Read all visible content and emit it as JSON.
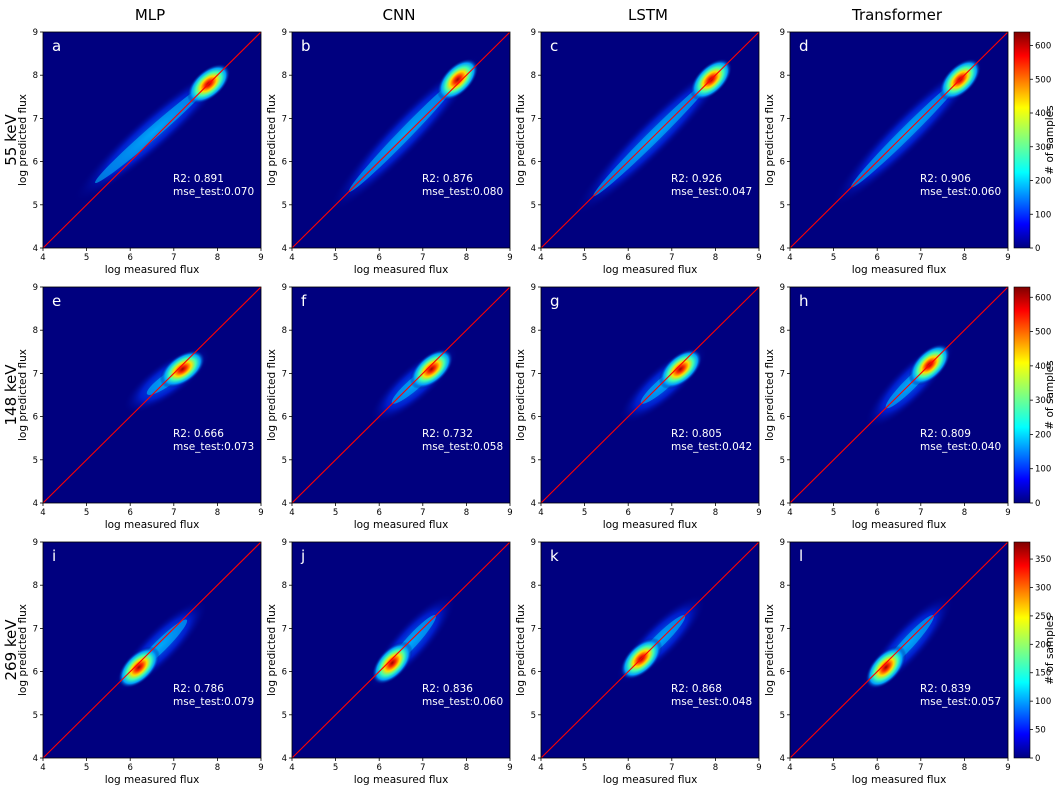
{
  "figure": {
    "column_titles": [
      "MLP",
      "CNN",
      "LSTM",
      "Transformer"
    ],
    "row_titles": [
      "55 keV",
      "148 keV",
      "269 keV"
    ],
    "colorbar_label": "# of samples",
    "colorbar_ticks": [
      [
        "0",
        "100",
        "200",
        "300",
        "400",
        "500",
        "600"
      ],
      [
        "0",
        "100",
        "200",
        "300",
        "400",
        "500",
        "600"
      ],
      [
        "0",
        "50",
        "100",
        "150",
        "200",
        "250",
        "300",
        "350"
      ]
    ],
    "colorbar_max": [
      640,
      630,
      380
    ],
    "colors": {
      "background": "#00007f",
      "identity_line": "#ff0000"
    }
  },
  "chart_data": [
    {
      "type": "heatmap",
      "panel": "a",
      "model": "MLP",
      "energy": "55 keV",
      "xlabel": "log measured flux",
      "ylabel": "log predicted flux",
      "xlim": [
        4,
        9
      ],
      "ylim": [
        4,
        9
      ],
      "ticks": [
        4,
        5,
        6,
        7,
        8,
        9
      ],
      "r2_label": "R2: 0.891",
      "mse_label": "mse_test:0.070",
      "density_center": [
        7.8,
        7.8
      ],
      "density_tail": [
        5.3,
        5.6
      ]
    },
    {
      "type": "heatmap",
      "panel": "b",
      "model": "CNN",
      "energy": "55 keV",
      "xlabel": "log measured flux",
      "ylabel": "log predicted flux",
      "xlim": [
        4,
        9
      ],
      "ylim": [
        4,
        9
      ],
      "ticks": [
        4,
        5,
        6,
        7,
        8,
        9
      ],
      "r2_label": "R2: 0.876",
      "mse_label": "mse_test:0.080",
      "density_center": [
        7.8,
        7.9
      ],
      "density_tail": [
        5.4,
        5.4
      ]
    },
    {
      "type": "heatmap",
      "panel": "c",
      "model": "LSTM",
      "energy": "55 keV",
      "xlabel": "log measured flux",
      "ylabel": "log predicted flux",
      "xlim": [
        4,
        9
      ],
      "ylim": [
        4,
        9
      ],
      "ticks": [
        4,
        5,
        6,
        7,
        8,
        9
      ],
      "r2_label": "R2: 0.926",
      "mse_label": "mse_test:0.047",
      "density_center": [
        7.9,
        7.9
      ],
      "density_tail": [
        5.3,
        5.3
      ]
    },
    {
      "type": "heatmap",
      "panel": "d",
      "model": "Transformer",
      "energy": "55 keV",
      "xlabel": "log measured flux",
      "ylabel": "log predicted flux",
      "xlim": [
        4,
        9
      ],
      "ylim": [
        4,
        9
      ],
      "ticks": [
        4,
        5,
        6,
        7,
        8,
        9
      ],
      "r2_label": "R2: 0.906",
      "mse_label": "mse_test:0.060",
      "density_center": [
        7.9,
        7.9
      ],
      "density_tail": [
        5.5,
        5.5
      ]
    },
    {
      "type": "heatmap",
      "panel": "e",
      "model": "MLP",
      "energy": "148 keV",
      "xlabel": "log measured flux",
      "ylabel": "log predicted flux",
      "xlim": [
        4,
        9
      ],
      "ylim": [
        4,
        9
      ],
      "ticks": [
        4,
        5,
        6,
        7,
        8,
        9
      ],
      "r2_label": "R2: 0.666",
      "mse_label": "mse_test:0.073",
      "density_center": [
        7.2,
        7.1
      ],
      "density_tail": [
        6.5,
        6.6
      ]
    },
    {
      "type": "heatmap",
      "panel": "f",
      "model": "CNN",
      "energy": "148 keV",
      "xlabel": "log measured flux",
      "ylabel": "log predicted flux",
      "xlim": [
        4,
        9
      ],
      "ylim": [
        4,
        9
      ],
      "ticks": [
        4,
        5,
        6,
        7,
        8,
        9
      ],
      "r2_label": "R2: 0.732",
      "mse_label": "mse_test:0.058",
      "density_center": [
        7.2,
        7.1
      ],
      "density_tail": [
        6.4,
        6.4
      ]
    },
    {
      "type": "heatmap",
      "panel": "g",
      "model": "LSTM",
      "energy": "148 keV",
      "xlabel": "log measured flux",
      "ylabel": "log predicted flux",
      "xlim": [
        4,
        9
      ],
      "ylim": [
        4,
        9
      ],
      "ticks": [
        4,
        5,
        6,
        7,
        8,
        9
      ],
      "r2_label": "R2: 0.805",
      "mse_label": "mse_test:0.042",
      "density_center": [
        7.2,
        7.1
      ],
      "density_tail": [
        6.4,
        6.4
      ]
    },
    {
      "type": "heatmap",
      "panel": "h",
      "model": "Transformer",
      "energy": "148 keV",
      "xlabel": "log measured flux",
      "ylabel": "log predicted flux",
      "xlim": [
        4,
        9
      ],
      "ylim": [
        4,
        9
      ],
      "ticks": [
        4,
        5,
        6,
        7,
        8,
        9
      ],
      "r2_label": "R2: 0.809",
      "mse_label": "mse_test:0.040",
      "density_center": [
        7.2,
        7.2
      ],
      "density_tail": [
        6.3,
        6.3
      ]
    },
    {
      "type": "heatmap",
      "panel": "i",
      "model": "MLP",
      "energy": "269 keV",
      "xlabel": "log measured flux",
      "ylabel": "log predicted flux",
      "xlim": [
        4,
        9
      ],
      "ylim": [
        4,
        9
      ],
      "ticks": [
        4,
        5,
        6,
        7,
        8,
        9
      ],
      "r2_label": "R2: 0.786",
      "mse_label": "mse_test:0.079",
      "density_center": [
        6.2,
        6.1
      ],
      "density_tail": [
        7.2,
        7.1
      ]
    },
    {
      "type": "heatmap",
      "panel": "j",
      "model": "CNN",
      "energy": "269 keV",
      "xlabel": "log measured flux",
      "ylabel": "log predicted flux",
      "xlim": [
        4,
        9
      ],
      "ylim": [
        4,
        9
      ],
      "ticks": [
        4,
        5,
        6,
        7,
        8,
        9
      ],
      "r2_label": "R2: 0.836",
      "mse_label": "mse_test:0.060",
      "density_center": [
        6.3,
        6.2
      ],
      "density_tail": [
        7.2,
        7.2
      ]
    },
    {
      "type": "heatmap",
      "panel": "k",
      "model": "LSTM",
      "energy": "269 keV",
      "xlabel": "log measured flux",
      "ylabel": "log predicted flux",
      "xlim": [
        4,
        9
      ],
      "ylim": [
        4,
        9
      ],
      "ticks": [
        4,
        5,
        6,
        7,
        8,
        9
      ],
      "r2_label": "R2: 0.868",
      "mse_label": "mse_test:0.048",
      "density_center": [
        6.3,
        6.3
      ],
      "density_tail": [
        7.2,
        7.2
      ]
    },
    {
      "type": "heatmap",
      "panel": "l",
      "model": "Transformer",
      "energy": "269 keV",
      "xlabel": "log measured flux",
      "ylabel": "log predicted flux",
      "xlim": [
        4,
        9
      ],
      "ylim": [
        4,
        9
      ],
      "ticks": [
        4,
        5,
        6,
        7,
        8,
        9
      ],
      "r2_label": "R2: 0.839",
      "mse_label": "mse_test:0.057",
      "density_center": [
        6.2,
        6.1
      ],
      "density_tail": [
        7.2,
        7.2
      ]
    }
  ]
}
